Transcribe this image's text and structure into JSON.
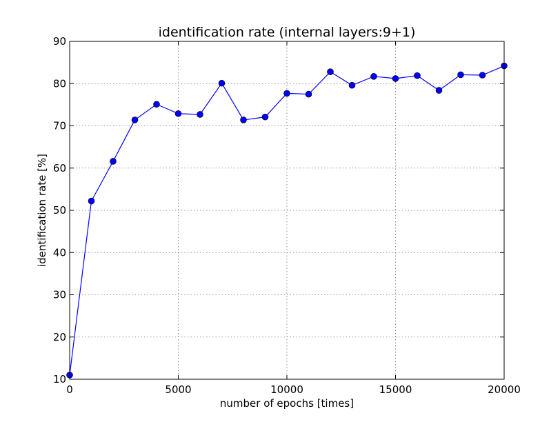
{
  "chart_data": {
    "type": "line",
    "title": "identification rate (internal layers:9+1)",
    "xlabel": "number of epochs [times]",
    "ylabel": "identification rate [%]",
    "xlim": [
      0,
      20000
    ],
    "ylim": [
      10,
      90
    ],
    "xticks": [
      0,
      5000,
      10000,
      15000,
      20000
    ],
    "xtick_labels": [
      "0",
      "5000",
      "10000",
      "15000",
      "20000"
    ],
    "yticks": [
      10,
      20,
      30,
      40,
      50,
      60,
      70,
      80,
      90
    ],
    "ytick_labels": [
      "10",
      "20",
      "30",
      "40",
      "50",
      "60",
      "70",
      "80",
      "90"
    ],
    "grid": true,
    "color": "#0000ff",
    "marker": "circle",
    "x": [
      0,
      1000,
      2000,
      3000,
      4000,
      5000,
      6000,
      7000,
      8000,
      9000,
      10000,
      11000,
      12000,
      13000,
      14000,
      15000,
      16000,
      17000,
      18000,
      19000,
      20000
    ],
    "y": [
      11.0,
      52.2,
      61.6,
      71.4,
      75.1,
      72.9,
      72.7,
      80.1,
      71.4,
      72.1,
      77.7,
      77.5,
      82.8,
      79.6,
      81.7,
      81.2,
      81.9,
      78.4,
      82.1,
      82.0,
      84.2
    ]
  }
}
